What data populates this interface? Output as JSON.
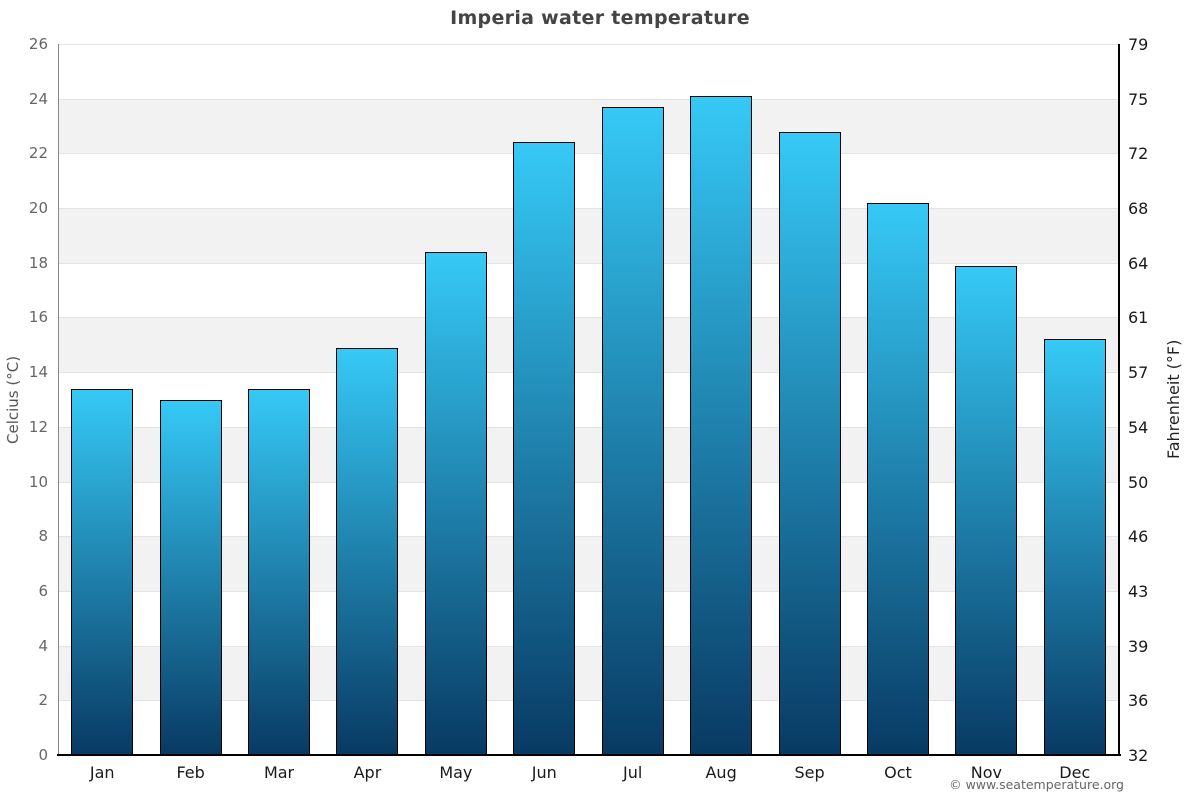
{
  "chart_data": {
    "type": "bar",
    "title": "Imperia water temperature",
    "categories": [
      "Jan",
      "Feb",
      "Mar",
      "Apr",
      "May",
      "Jun",
      "Jul",
      "Aug",
      "Sep",
      "Oct",
      "Nov",
      "Dec"
    ],
    "values": [
      13.4,
      13.0,
      13.4,
      14.9,
      18.4,
      22.4,
      23.7,
      24.1,
      22.8,
      20.2,
      17.9,
      15.2
    ],
    "ylabel_left": "Celcius (°C)",
    "ylabel_right": "Fahrenheit (°F)",
    "ylim": [
      0,
      26
    ],
    "ytick_step": 2,
    "yticks_left": [
      26,
      24,
      22,
      20,
      18,
      16,
      14,
      12,
      10,
      8,
      6,
      4,
      2,
      0
    ],
    "yticks_right": [
      79,
      75,
      72,
      68,
      64,
      61,
      57,
      54,
      50,
      46,
      43,
      39,
      36,
      32
    ],
    "grid": "horizontal",
    "legend_position": "none",
    "background_bands": true,
    "colors": {
      "bar_gradient_top": "#36c9f6",
      "bar_gradient_bottom": "#083a63",
      "bar_border": "#000000",
      "band_gray": "#f2f2f2",
      "band_white": "#ffffff",
      "gridline": "#e3e3e3",
      "title_text": "#444444",
      "left_tick_text": "#666666",
      "right_tick_text": "#1a1a1a"
    },
    "copyright": "© www.seatemperature.org"
  }
}
